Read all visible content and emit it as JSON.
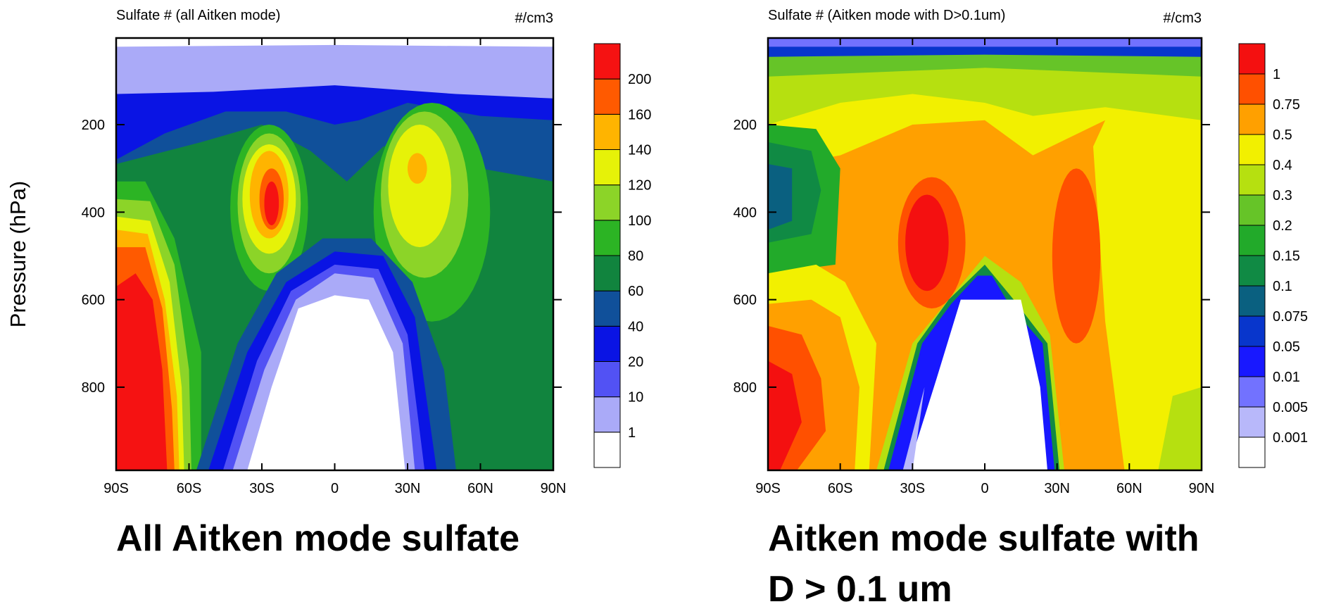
{
  "chart_data": [
    {
      "type": "contour",
      "title": "Sulfate # (all Aitken mode)",
      "units": "#/cm3",
      "ylabel": "Pressure (hPa)",
      "caption": [
        "All Aitken mode sulfate"
      ],
      "xlim": [
        -90,
        90
      ],
      "xticks": [
        {
          "value": -90,
          "label": "90S"
        },
        {
          "value": -60,
          "label": "60S"
        },
        {
          "value": -30,
          "label": "30S"
        },
        0,
        {
          "value": 30,
          "label": "30N"
        },
        {
          "value": 60,
          "label": "60N"
        },
        {
          "value": 90,
          "label": "90N"
        }
      ],
      "ylim": [
        990,
        2
      ],
      "yticks": [
        200,
        400,
        600,
        800
      ],
      "levels": [
        1,
        10,
        20,
        40,
        60,
        80,
        100,
        120,
        140,
        160,
        200
      ],
      "colors": [
        "#ffffff",
        "#aaaaf8",
        "#5252f4",
        "#0a14e4",
        "#10509a",
        "#11843e",
        "#2cb424",
        "#8cd428",
        "#e6f208",
        "#ffb400",
        "#ff5a00",
        "#f51212"
      ]
    },
    {
      "type": "contour",
      "title": "Sulfate # (Aitken mode with D>0.1um)",
      "units": "#/cm3",
      "caption": [
        "Aitken mode sulfate with",
        "D > 0.1 um"
      ],
      "xlim": [
        -90,
        90
      ],
      "xticks": [
        {
          "value": -90,
          "label": "90S"
        },
        {
          "value": -60,
          "label": "60S"
        },
        {
          "value": -30,
          "label": "30S"
        },
        0,
        {
          "value": 30,
          "label": "30N"
        },
        {
          "value": 60,
          "label": "60N"
        },
        {
          "value": 90,
          "label": "90N"
        }
      ],
      "ylim": [
        990,
        2
      ],
      "yticks": [
        200,
        400,
        600,
        800
      ],
      "levels": [
        0.001,
        0.005,
        0.01,
        0.05,
        0.075,
        0.1,
        0.15,
        0.2,
        0.3,
        0.4,
        0.5,
        0.75,
        1
      ],
      "colors": [
        "#ffffff",
        "#b8b8fa",
        "#7272ff",
        "#1818ff",
        "#0836cc",
        "#0a6080",
        "#108a44",
        "#22aa2a",
        "#66c428",
        "#b6e010",
        "#f2f000",
        "#ffa000",
        "#ff5000",
        "#f41010"
      ]
    }
  ]
}
